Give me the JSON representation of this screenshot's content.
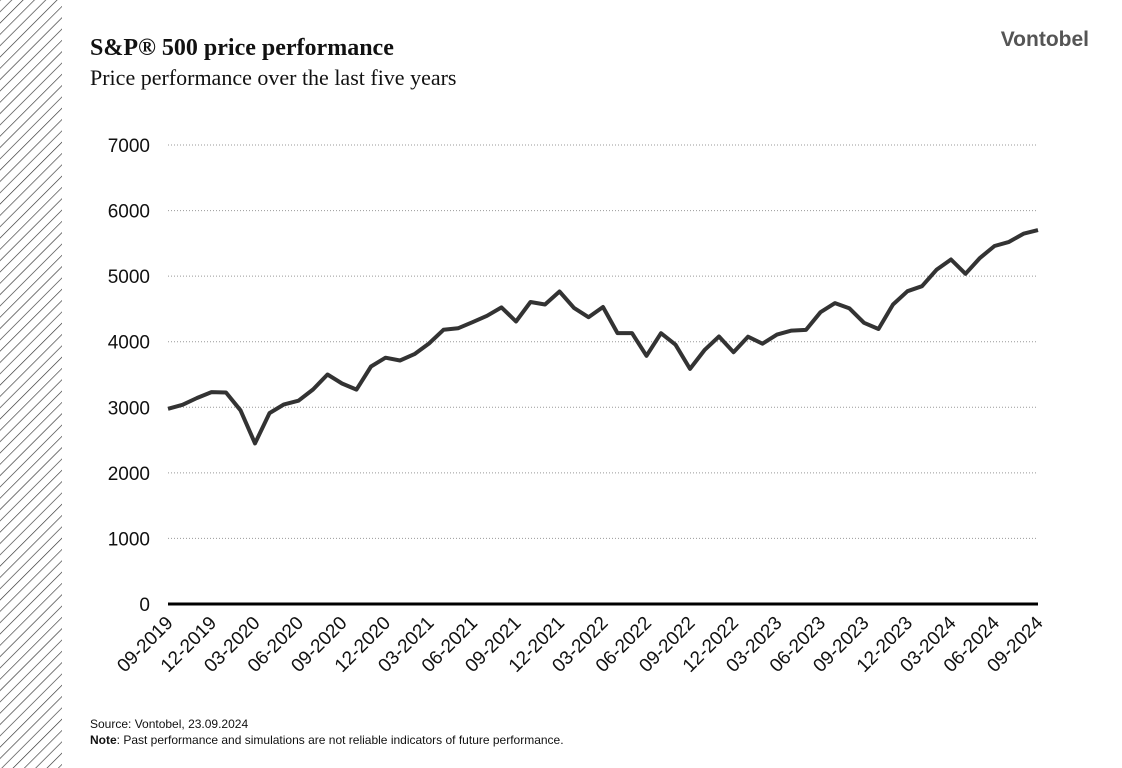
{
  "brand": "Vontobel",
  "chart_data": {
    "type": "line",
    "title": "S&P® 500 price performance",
    "subtitle": "Price performance over the last five years",
    "source": "Source: Vontobel, 23.09.2024",
    "note_label": "Note",
    "note_text": ": Past performance and simulations are not reliable indicators of future performance.",
    "x": [
      "09-2019",
      "10-2019",
      "11-2019",
      "12-2019",
      "01-2020",
      "02-2020",
      "03-2020",
      "04-2020",
      "05-2020",
      "06-2020",
      "07-2020",
      "08-2020",
      "09-2020",
      "10-2020",
      "11-2020",
      "12-2020",
      "01-2021",
      "02-2021",
      "03-2021",
      "04-2021",
      "05-2021",
      "06-2021",
      "07-2021",
      "08-2021",
      "09-2021",
      "10-2021",
      "11-2021",
      "12-2021",
      "01-2022",
      "02-2022",
      "03-2022",
      "04-2022",
      "05-2022",
      "06-2022",
      "07-2022",
      "08-2022",
      "09-2022",
      "10-2022",
      "11-2022",
      "12-2022",
      "01-2023",
      "02-2023",
      "03-2023",
      "04-2023",
      "05-2023",
      "06-2023",
      "07-2023",
      "08-2023",
      "09-2023",
      "10-2023",
      "11-2023",
      "12-2023",
      "01-2024",
      "02-2024",
      "03-2024",
      "04-2024",
      "05-2024",
      "06-2024",
      "07-2024",
      "08-2024",
      "09-2024"
    ],
    "series": [
      {
        "name": "S&P 500",
        "color": "#333333",
        "values": [
          2977,
          3038,
          3141,
          3231,
          3226,
          2954,
          2450,
          2912,
          3044,
          3100,
          3271,
          3500,
          3363,
          3270,
          3622,
          3756,
          3714,
          3811,
          3973,
          4181,
          4204,
          4298,
          4395,
          4523,
          4308,
          4605,
          4567,
          4766,
          4516,
          4374,
          4530,
          4132,
          4132,
          3785,
          4130,
          3955,
          3586,
          3872,
          4080,
          3840,
          4077,
          3970,
          4109,
          4169,
          4180,
          4450,
          4589,
          4508,
          4288,
          4194,
          4568,
          4770,
          4846,
          5096,
          5254,
          5036,
          5278,
          5460,
          5522,
          5648,
          5702
        ]
      }
    ],
    "ylim": [
      0,
      7000
    ],
    "yticks": [
      0,
      1000,
      2000,
      3000,
      4000,
      5000,
      6000,
      7000
    ],
    "grid": true
  }
}
